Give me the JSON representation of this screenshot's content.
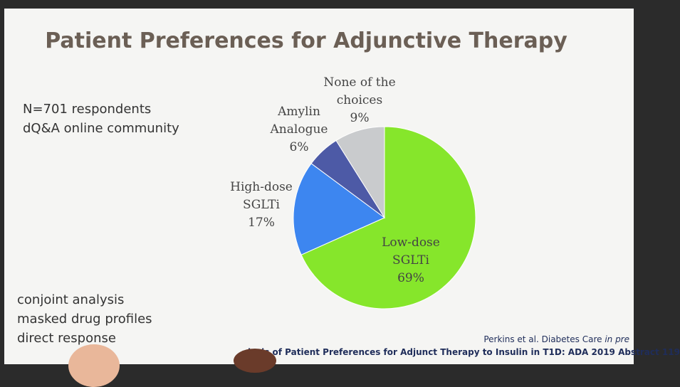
{
  "slide": {
    "title": "Patient Preferences for Adjunctive Therapy",
    "info_lines": [
      "N=701 respondents",
      "dQ&A online community"
    ],
    "method_lines": [
      "conjoint analysis",
      "masked drug profiles",
      "direct response"
    ],
    "citation_main": "Perkins et al. Diabetes Care ",
    "citation_italic": "in pre",
    "footer_text": "lysis of Patient Preferences for Adjunct Therapy to Insulin in T1D: ADA 2019 Abstract 119"
  },
  "chart_data": {
    "type": "pie",
    "title": "",
    "start_angle_deg": 0,
    "direction": "clockwise",
    "slices": [
      {
        "label_lines": [
          "Low-dose",
          "SGLTi",
          "69%"
        ],
        "value": 69,
        "color": "#86e62b"
      },
      {
        "label_lines": [
          "High-dose",
          "SGLTi",
          "17%"
        ],
        "value": 17,
        "color": "#3d86f0"
      },
      {
        "label_lines": [
          "Amylin",
          "Analogue",
          "6%"
        ],
        "value": 6,
        "color": "#4d5aa6"
      },
      {
        "label_lines": [
          "None of the",
          "choices",
          "9%"
        ],
        "value": 9,
        "color": "#c9cbcd"
      }
    ]
  }
}
